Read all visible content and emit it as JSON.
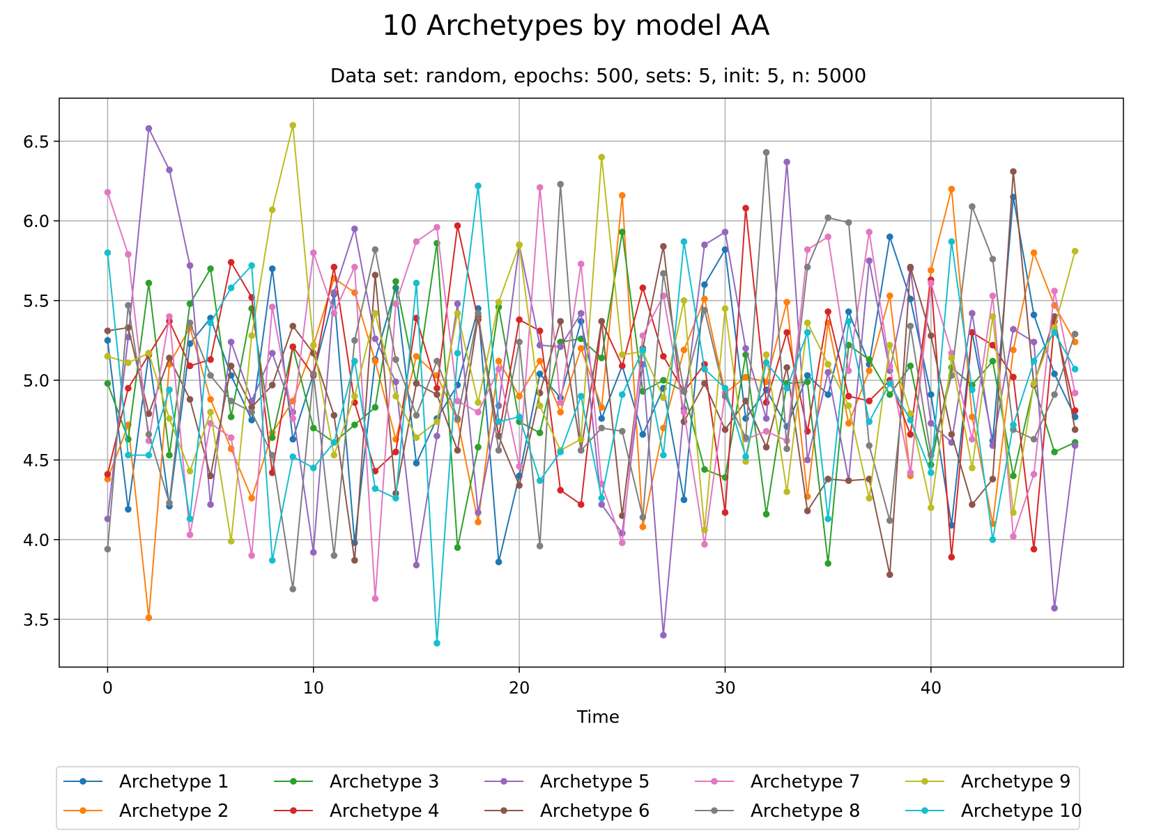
{
  "title": "10 Archetypes by model AA",
  "subtitle": "Data set: random, epochs: 500, sets: 5, init: 5, n: 5000",
  "chart_data": {
    "type": "line",
    "title": "10 Archetypes by model AA",
    "subtitle": "Data set: random, epochs: 500, sets: 5, init: 5, n: 5000",
    "xlabel": "Time",
    "ylabel": "",
    "xlim": [
      -2.35,
      49.35
    ],
    "ylim": [
      3.2,
      6.77
    ],
    "xticks": [
      0,
      10,
      20,
      30,
      40
    ],
    "yticks": [
      3.5,
      4.0,
      4.5,
      5.0,
      5.5,
      6.0,
      6.5
    ],
    "ytick_labels": [
      "3.5",
      "4.0",
      "4.5",
      "5.0",
      "5.5",
      "6.0",
      "6.5"
    ],
    "grid": true,
    "legend_position": "bottom-center (below plot, 5 columns)",
    "x": [
      0,
      1,
      2,
      3,
      4,
      5,
      6,
      7,
      8,
      9,
      10,
      11,
      12,
      13,
      14,
      15,
      16,
      17,
      18,
      19,
      20,
      21,
      22,
      23,
      24,
      25,
      26,
      27,
      28,
      29,
      30,
      31,
      32,
      33,
      34,
      35,
      36,
      37,
      38,
      39,
      40,
      41,
      42,
      43,
      44,
      45,
      46,
      47
    ],
    "series": [
      {
        "name": "Archetype 1",
        "color": "#1f77b4",
        "values": [
          5.25,
          4.19,
          5.17,
          4.21,
          5.23,
          5.39,
          5.03,
          4.75,
          5.7,
          4.63,
          5.04,
          5.54,
          3.98,
          5.13,
          5.58,
          4.48,
          4.76,
          4.97,
          5.45,
          3.86,
          4.4,
          5.04,
          4.89,
          5.37,
          4.76,
          5.09,
          4.66,
          4.95,
          4.25,
          5.6,
          5.82,
          4.76,
          4.94,
          4.71,
          5.03,
          4.91,
          5.43,
          5.1,
          5.9,
          5.51,
          4.91,
          4.09,
          5.3,
          4.62,
          6.15,
          5.41,
          5.04,
          4.77
        ]
      },
      {
        "name": "Archetype 2",
        "color": "#ff7f0e",
        "values": [
          4.38,
          4.72,
          3.51,
          5.1,
          5.33,
          4.88,
          4.57,
          4.26,
          4.67,
          4.87,
          5.22,
          5.64,
          5.55,
          5.12,
          4.63,
          5.15,
          5.03,
          4.75,
          4.11,
          5.12,
          4.9,
          5.12,
          4.8,
          5.2,
          4.83,
          6.16,
          4.08,
          4.7,
          5.19,
          5.51,
          4.92,
          5.02,
          4.99,
          5.49,
          4.27,
          5.36,
          4.73,
          5.06,
          5.53,
          4.4,
          5.69,
          6.2,
          4.77,
          4.1,
          5.19,
          5.8,
          5.47,
          5.24
        ]
      },
      {
        "name": "Archetype 3",
        "color": "#2ca02c",
        "values": [
          4.98,
          4.63,
          5.61,
          4.53,
          5.48,
          5.7,
          4.77,
          5.45,
          4.64,
          5.21,
          4.7,
          4.61,
          4.72,
          4.83,
          5.62,
          4.98,
          5.86,
          3.95,
          4.58,
          5.46,
          4.74,
          4.67,
          5.24,
          5.26,
          5.14,
          5.93,
          4.93,
          5.0,
          4.93,
          4.44,
          4.39,
          5.16,
          4.16,
          4.98,
          4.99,
          3.85,
          5.22,
          5.13,
          4.91,
          5.09,
          4.47,
          5.08,
          4.97,
          5.12,
          4.4,
          4.97,
          4.55,
          4.61
        ]
      },
      {
        "name": "Archetype 4",
        "color": "#d62728",
        "values": [
          4.41,
          4.95,
          5.16,
          5.37,
          5.09,
          5.13,
          5.74,
          5.52,
          4.42,
          5.21,
          5.03,
          5.71,
          4.86,
          4.43,
          4.55,
          5.39,
          4.95,
          5.97,
          5.38,
          4.65,
          5.38,
          5.31,
          4.31,
          4.22,
          5.37,
          5.09,
          5.58,
          5.15,
          4.93,
          5.1,
          4.17,
          6.08,
          4.86,
          5.3,
          4.68,
          5.43,
          4.9,
          4.87,
          5.0,
          4.66,
          5.63,
          3.89,
          5.3,
          5.22,
          5.02,
          3.94,
          5.37,
          4.81
        ]
      },
      {
        "name": "Archetype 5",
        "color": "#9467bd",
        "values": [
          4.13,
          5.27,
          6.58,
          6.32,
          5.72,
          4.22,
          5.24,
          4.87,
          5.17,
          4.8,
          3.92,
          5.55,
          5.95,
          5.26,
          4.99,
          3.84,
          4.65,
          5.48,
          4.17,
          4.84,
          5.85,
          5.22,
          5.21,
          5.42,
          4.22,
          4.04,
          5.1,
          3.4,
          4.82,
          5.85,
          5.93,
          5.2,
          4.76,
          6.37,
          4.5,
          5.05,
          4.37,
          5.75,
          5.06,
          5.7,
          4.73,
          4.61,
          5.42,
          4.59,
          5.32,
          5.24,
          3.57,
          4.59
        ]
      },
      {
        "name": "Archetype 6",
        "color": "#8c564b",
        "values": [
          5.31,
          5.33,
          4.79,
          5.14,
          4.88,
          4.4,
          5.09,
          4.83,
          4.97,
          5.34,
          5.17,
          4.78,
          3.87,
          5.66,
          4.29,
          4.98,
          4.91,
          4.56,
          5.4,
          4.65,
          4.34,
          4.92,
          5.37,
          4.56,
          5.37,
          4.15,
          5.2,
          5.84,
          4.74,
          4.98,
          4.69,
          4.87,
          4.58,
          5.08,
          4.18,
          4.38,
          4.37,
          4.38,
          3.78,
          5.71,
          5.28,
          4.66,
          4.22,
          4.38,
          6.31,
          4.97,
          5.4,
          4.69
        ]
      },
      {
        "name": "Archetype 7",
        "color": "#e377c2",
        "values": [
          6.18,
          5.79,
          4.62,
          5.4,
          4.03,
          4.73,
          4.64,
          3.9,
          5.46,
          4.76,
          5.8,
          5.42,
          5.71,
          3.63,
          5.48,
          5.87,
          5.96,
          4.87,
          4.8,
          5.07,
          4.46,
          6.21,
          4.86,
          5.73,
          4.35,
          3.98,
          5.28,
          5.53,
          4.8,
          3.97,
          4.92,
          4.63,
          4.68,
          4.62,
          5.82,
          5.9,
          5.06,
          5.93,
          5.09,
          4.42,
          5.61,
          5.17,
          4.63,
          5.53,
          4.02,
          4.41,
          5.56,
          4.92
        ]
      },
      {
        "name": "Archetype 8",
        "color": "#7f7f7f",
        "values": [
          3.94,
          5.47,
          4.66,
          4.23,
          5.36,
          5.03,
          4.87,
          4.8,
          4.53,
          3.69,
          5.04,
          3.9,
          5.25,
          5.82,
          5.13,
          4.78,
          5.12,
          4.76,
          5.42,
          4.56,
          5.24,
          3.96,
          6.23,
          4.56,
          4.7,
          4.68,
          4.14,
          5.67,
          4.93,
          5.44,
          4.9,
          4.64,
          6.43,
          4.57,
          5.71,
          6.02,
          5.99,
          4.59,
          4.12,
          5.34,
          4.53,
          5.03,
          6.09,
          5.76,
          4.69,
          4.63,
          4.91,
          5.29
        ]
      },
      {
        "name": "Archetype 9",
        "color": "#bcbd22",
        "values": [
          5.15,
          5.11,
          5.17,
          4.76,
          4.43,
          4.8,
          3.99,
          5.28,
          6.07,
          6.6,
          5.22,
          4.53,
          4.9,
          5.42,
          4.9,
          4.64,
          4.74,
          5.42,
          4.86,
          5.49,
          5.85,
          4.84,
          4.56,
          4.63,
          6.4,
          5.16,
          5.18,
          4.89,
          5.5,
          4.06,
          5.45,
          4.49,
          5.16,
          4.3,
          5.36,
          5.1,
          4.84,
          4.26,
          5.22,
          4.79,
          4.2,
          5.14,
          4.45,
          5.4,
          4.17,
          4.98,
          5.33,
          5.81
        ]
      },
      {
        "name": "Archetype 10",
        "color": "#17becf",
        "values": [
          5.8,
          4.53,
          4.53,
          4.94,
          4.13,
          5.36,
          5.58,
          5.72,
          3.87,
          4.52,
          4.45,
          4.61,
          5.12,
          4.32,
          4.26,
          5.61,
          3.35,
          5.17,
          6.22,
          4.74,
          4.77,
          4.37,
          4.55,
          4.9,
          4.26,
          4.91,
          5.19,
          4.53,
          5.87,
          5.07,
          4.95,
          4.52,
          5.11,
          4.95,
          5.3,
          4.13,
          5.37,
          4.74,
          4.98,
          4.75,
          4.42,
          5.87,
          4.94,
          4.0,
          4.72,
          5.12,
          5.3,
          5.07
        ]
      }
    ]
  }
}
